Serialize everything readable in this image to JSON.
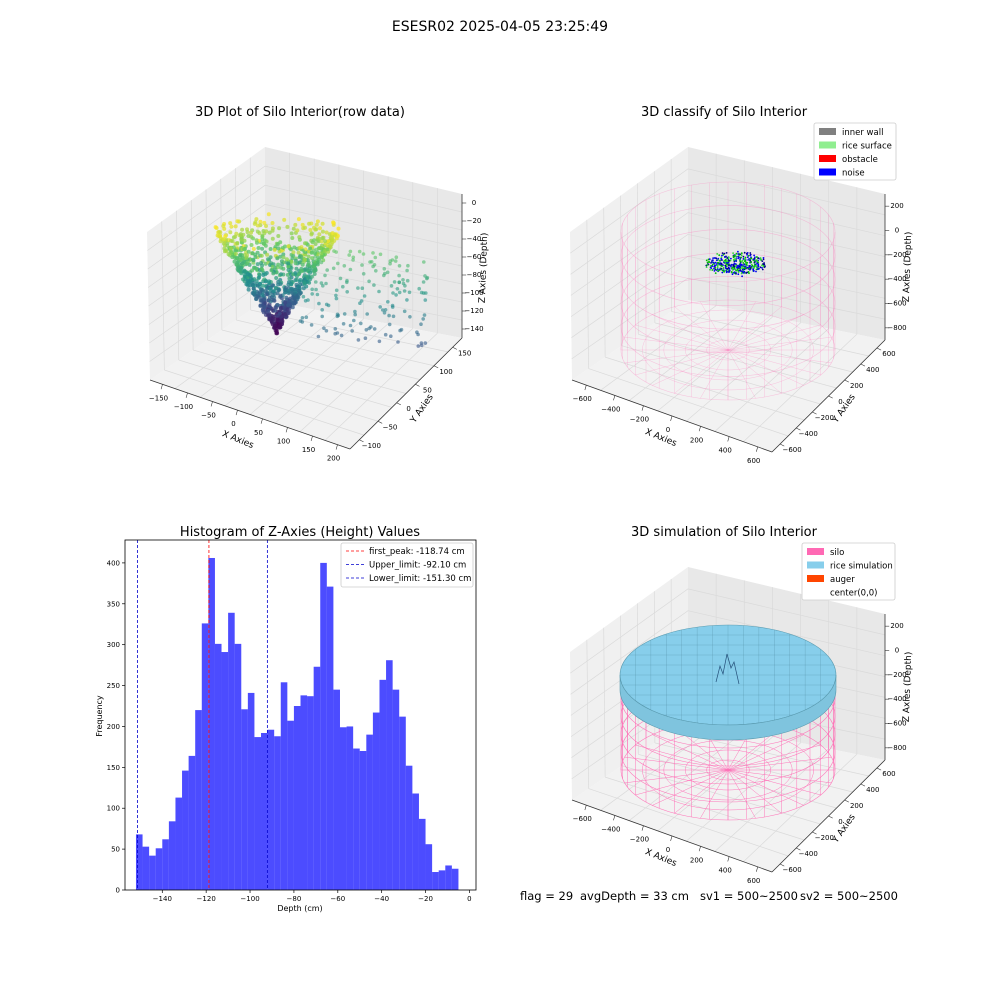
{
  "suptitle": "ESESR02 2025-04-05 23:25:49",
  "panel_3d_raw": {
    "title": "3D Plot of Silo Interior(row data)",
    "xlabel": "X Axies",
    "ylabel": "Y Axies",
    "zlabel": "Z Axies (Depth)",
    "xticks": [
      "−150",
      "−100",
      "−50",
      "0",
      "50",
      "100",
      "150",
      "200"
    ],
    "yticks": [
      "−100",
      "−50",
      "0",
      "50",
      "100",
      "150"
    ],
    "zticks": [
      "0",
      "−20",
      "−40",
      "−60",
      "−80",
      "−100",
      "−120",
      "−140"
    ],
    "colormap": [
      "#440154",
      "#3b528b",
      "#21918c",
      "#5ec962",
      "#fde725"
    ]
  },
  "panel_3d_classify": {
    "title": "3D classify of Silo Interior",
    "xlabel": "X Axies",
    "ylabel": "Y Axies",
    "zlabel": "Z Axies (Depth)",
    "xticks": [
      "−600",
      "−400",
      "−200",
      "0",
      "200",
      "400",
      "600"
    ],
    "yticks": [
      "−600",
      "−400",
      "−200",
      "0",
      "200",
      "400",
      "600"
    ],
    "zticks": [
      "200",
      "0",
      "−200",
      "−400",
      "−600",
      "−800"
    ],
    "legend": [
      {
        "label": "inner wall",
        "color": "#808080"
      },
      {
        "label": "rice surface",
        "color": "#90ee90"
      },
      {
        "label": "obstacle",
        "color": "#ff0000"
      },
      {
        "label": "noise",
        "color": "#0000ff"
      }
    ]
  },
  "panel_3d_sim": {
    "title": "3D simulation of Silo Interior",
    "xlabel": "X Axies",
    "ylabel": "Y Axies",
    "zlabel": "Z Axies (Depth)",
    "xticks": [
      "−600",
      "−400",
      "−200",
      "0",
      "200",
      "400",
      "600"
    ],
    "yticks": [
      "−600",
      "−400",
      "−200",
      "0",
      "200",
      "400",
      "600"
    ],
    "zticks": [
      "200",
      "0",
      "−200",
      "−400",
      "−600",
      "−800"
    ],
    "legend": [
      {
        "label": "silo",
        "color": "#ff69b4"
      },
      {
        "label": "rice simulation",
        "color": "#87ceeb"
      },
      {
        "label": "auger",
        "color": "#ff4500"
      },
      {
        "label": "center(0,0)",
        "color": "#ffffff"
      }
    ]
  },
  "footer": {
    "flag": "flag = 29",
    "avg": "avgDepth = 33 cm",
    "sv1": "sv1 = 500~2500",
    "sv2": "sv2 = 500~2500"
  },
  "chart_data": {
    "type": "bar",
    "title": "Histogram of Z-Axies (Height) Values",
    "xlabel": "Depth (cm)",
    "ylabel": "Frequency",
    "xlim": [
      -157,
      3
    ],
    "ylim": [
      0,
      428
    ],
    "xticks": [
      -140,
      -120,
      -100,
      -80,
      -60,
      -40,
      -20,
      0
    ],
    "yticks": [
      0,
      50,
      100,
      150,
      200,
      250,
      300,
      350,
      400
    ],
    "bin_start": -152.0,
    "bin_width": 3.0,
    "bar_color": "#0000ff",
    "values": [
      68,
      53,
      42,
      51,
      62,
      84,
      113,
      146,
      164,
      220,
      326,
      406,
      301,
      291,
      339,
      301,
      221,
      241,
      187,
      192,
      196,
      188,
      254,
      207,
      225,
      238,
      237,
      273,
      400,
      371,
      245,
      199,
      200,
      173,
      170,
      190,
      217,
      257,
      281,
      245,
      212,
      152,
      118,
      87,
      56,
      22,
      24,
      30,
      26
    ],
    "vlines": [
      {
        "label": "first_peak: -118.74 cm",
        "x": -118.74,
        "color": "#ff0000"
      },
      {
        "label": "Upper_limit: -92.10 cm",
        "x": -92.1,
        "color": "#0000cc"
      },
      {
        "label": "Lower_limit: -151.30 cm",
        "x": -151.3,
        "color": "#0000cc"
      }
    ]
  }
}
